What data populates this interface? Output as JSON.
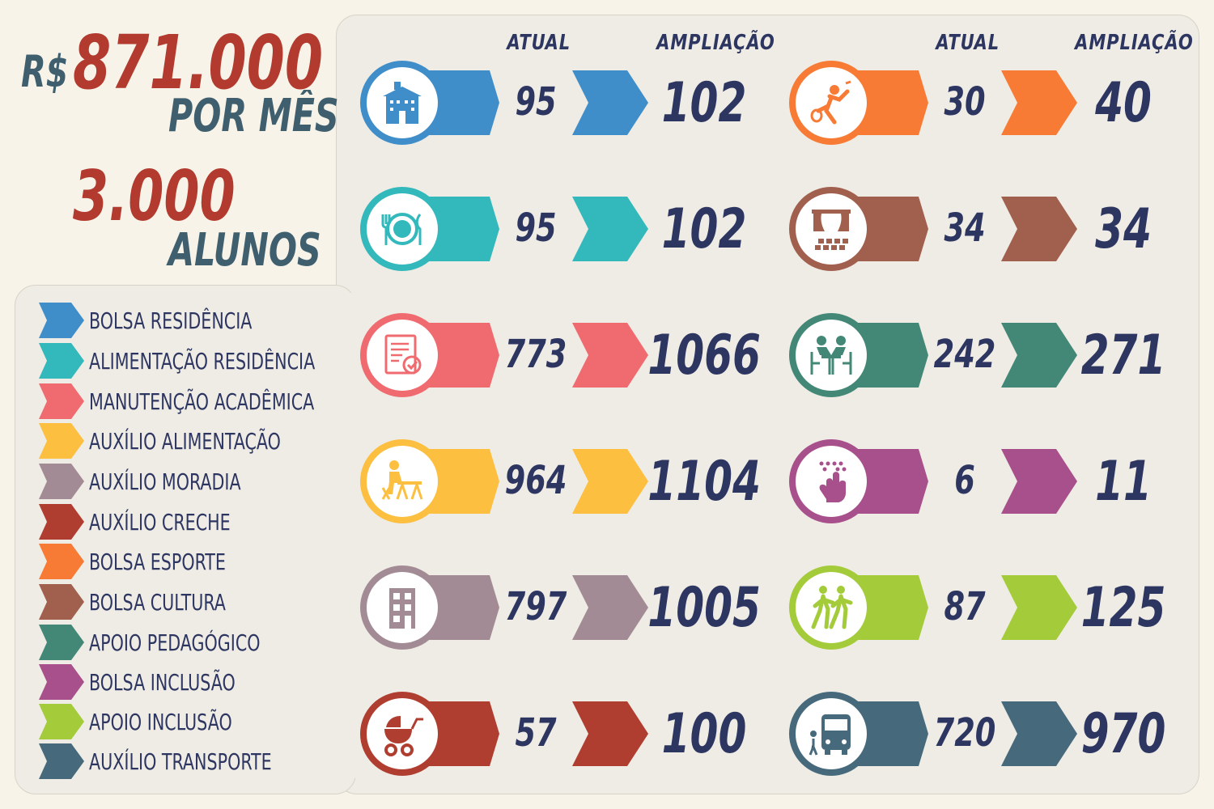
{
  "summary": {
    "currency": "R$",
    "amount": "871.000",
    "per_month": "POR MÊS",
    "students": "3.000",
    "students_label": "ALUNOS"
  },
  "headers": {
    "left_current": "ATUAL",
    "left_expansion": "AMPLIAÇÃO",
    "right_current": "ATUAL",
    "right_expansion": "AMPLIAÇÃO"
  },
  "colors": {
    "text_dark": "#2d3561",
    "summary_red": "#b23a2e",
    "summary_blue": "#3f5f6e",
    "background": "#f7f3e8",
    "panel": "#efece5"
  },
  "legend": [
    {
      "label": "BOLSA RESIDÊNCIA",
      "color": "#3f8ec9"
    },
    {
      "label": "ALIMENTAÇÃO RESIDÊNCIA",
      "color": "#33b8bb"
    },
    {
      "label": "MANUTENÇÃO ACADÊMICA",
      "color": "#ef6b6f"
    },
    {
      "label": "AUXÍLIO ALIMENTAÇÃO",
      "color": "#fcbf3f"
    },
    {
      "label": "AUXÍLIO MORADIA",
      "color": "#a38b95"
    },
    {
      "label": "AUXÍLIO CRECHE",
      "color": "#b03e30"
    },
    {
      "label": "BOLSA ESPORTE",
      "color": "#f87b35"
    },
    {
      "label": "BOLSA CULTURA",
      "color": "#a15f4e"
    },
    {
      "label": "APOIO PEDAGÓGICO",
      "color": "#438877"
    },
    {
      "label": "BOLSA INCLUSÃO",
      "color": "#a8508c"
    },
    {
      "label": "APOIO INCLUSÃO",
      "color": "#a4cb39"
    },
    {
      "label": "AUXÍLIO TRANSPORTE",
      "color": "#466a7c"
    }
  ],
  "rows": [
    {
      "category": "BOLSA RESIDÊNCIA",
      "icon": "building-icon",
      "color": "#3f8ec9",
      "current": "95",
      "expansion": "102"
    },
    {
      "category": "ALIMENTAÇÃO RESIDÊNCIA",
      "icon": "plate-cutlery-icon",
      "color": "#33b8bb",
      "current": "95",
      "expansion": "102"
    },
    {
      "category": "MANUTENÇÃO ACADÊMICA",
      "icon": "document-check-icon",
      "color": "#ef6b6f",
      "current": "773",
      "expansion": "1066"
    },
    {
      "category": "AUXÍLIO ALIMENTAÇÃO",
      "icon": "person-eating-icon",
      "color": "#fcbf3f",
      "current": "964",
      "expansion": "1104"
    },
    {
      "category": "AUXÍLIO MORADIA",
      "icon": "house-icon",
      "color": "#a38b95",
      "current": "797",
      "expansion": "1005"
    },
    {
      "category": "AUXÍLIO CRECHE",
      "icon": "baby-stroller-icon",
      "color": "#b03e30",
      "current": "57",
      "expansion": "100"
    },
    {
      "category": "BOLSA ESPORTE",
      "icon": "badminton-player-icon",
      "color": "#f87b35",
      "current": "30",
      "expansion": "40"
    },
    {
      "category": "BOLSA CULTURA",
      "icon": "theater-stage-icon",
      "color": "#a15f4e",
      "current": "34",
      "expansion": "34"
    },
    {
      "category": "APOIO PEDAGÓGICO",
      "icon": "tutoring-people-icon",
      "color": "#438877",
      "current": "242",
      "expansion": "271"
    },
    {
      "category": "BOLSA INCLUSÃO",
      "icon": "braille-hand-icon",
      "color": "#a8508c",
      "current": "6",
      "expansion": "11"
    },
    {
      "category": "APOIO INCLUSÃO",
      "icon": "walking-people-icon",
      "color": "#a4cb39",
      "current": "87",
      "expansion": "125"
    },
    {
      "category": "AUXÍLIO TRANSPORTE",
      "icon": "school-bus-icon",
      "color": "#466a7c",
      "current": "720",
      "expansion": "970"
    }
  ]
}
